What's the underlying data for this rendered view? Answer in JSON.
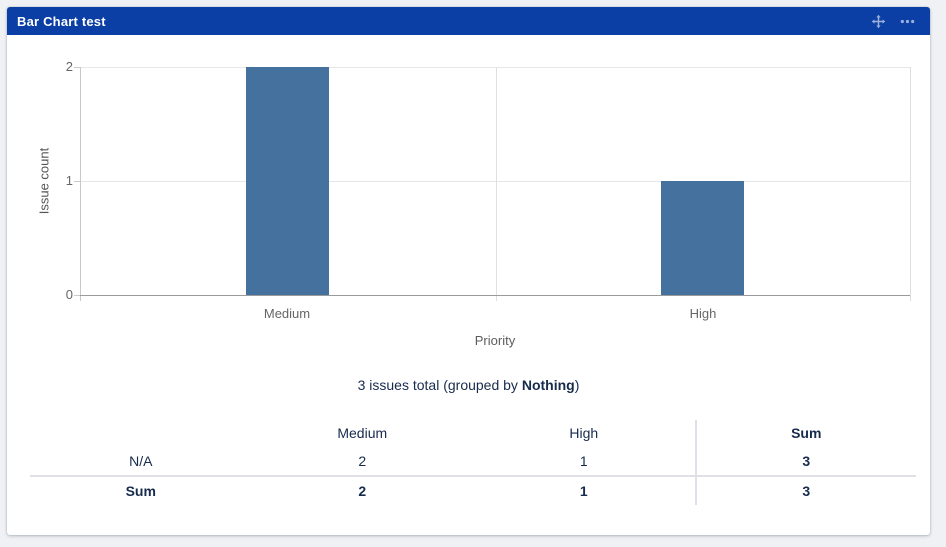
{
  "page": {
    "background_color": "#f0f1f4"
  },
  "gadget": {
    "title": "Bar Chart test",
    "header_color": "#0b3fa5",
    "icons": [
      {
        "name": "move-icon",
        "meaning": "drag gadget"
      },
      {
        "name": "ellipsis-icon",
        "meaning": "more options"
      }
    ]
  },
  "chart_data": {
    "type": "bar",
    "categories": [
      "Medium",
      "High"
    ],
    "values": [
      2,
      1
    ],
    "xlabel": "Priority",
    "ylabel": "Issue count",
    "yticks": [
      "0",
      "1",
      "2"
    ],
    "ylim": [
      0,
      2
    ],
    "bar_color": "#45719f",
    "grid": true,
    "legend_position": "none"
  },
  "summary": {
    "prefix": "3 issues total (grouped by ",
    "group_by": "Nothing",
    "suffix": ")"
  },
  "table": {
    "headers": [
      "",
      "Medium",
      "High",
      "Sum"
    ],
    "rows": [
      {
        "label": "N/A",
        "cells": [
          "2",
          "1",
          "3"
        ]
      },
      {
        "label": "Sum",
        "cells": [
          "2",
          "1",
          "3"
        ]
      }
    ]
  }
}
